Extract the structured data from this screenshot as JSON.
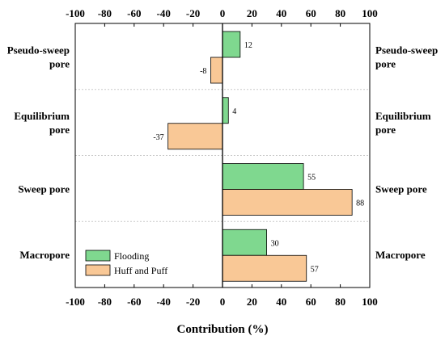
{
  "chart_data": {
    "type": "bar",
    "orientation": "horizontal",
    "xlabel": "Contribution (%)",
    "xlim": [
      -100,
      100
    ],
    "xticks": [
      -100,
      -80,
      -60,
      -40,
      -20,
      0,
      20,
      40,
      60,
      80,
      100
    ],
    "categories": [
      "Pseudo-sweep pore",
      "Equilibrium pore",
      "Sweep pore",
      "Macropore"
    ],
    "category_labels": [
      [
        "Pseudo-sweep",
        "pore"
      ],
      [
        "Equilibrium",
        "pore"
      ],
      [
        "Sweep pore"
      ],
      [
        "Macropore"
      ]
    ],
    "series": [
      {
        "name": "Flooding",
        "values": [
          12,
          4,
          55,
          30
        ],
        "color": "#7fd88f"
      },
      {
        "name": "Huff and Puff",
        "values": [
          -8,
          -37,
          88,
          57
        ],
        "color": "#f9c896"
      }
    ],
    "grid": "dotted separators between categories",
    "legend": "bottom-left",
    "tick_labels_top_and_bottom": true,
    "category_labels_left_and_right": true
  }
}
